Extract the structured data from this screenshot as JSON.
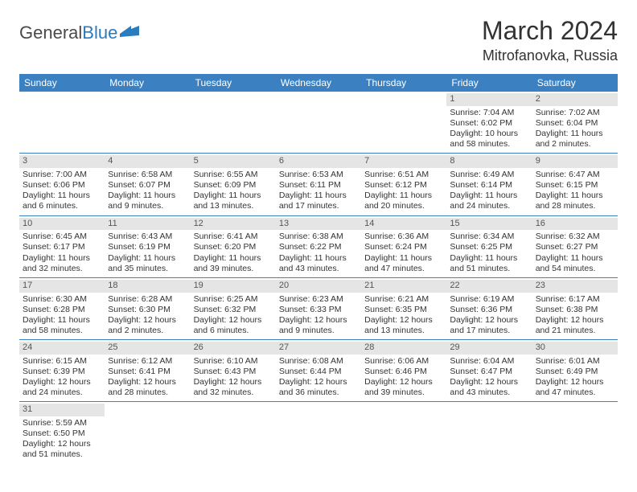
{
  "logo": {
    "text1": "General",
    "text2": "Blue"
  },
  "title": "March 2024",
  "location": "Mitrofanovka, Russia",
  "colors": {
    "header_bg": "#3b81c2",
    "header_text": "#ffffff",
    "date_bg": "#e5e5e5",
    "row_border": "#3b81c2",
    "text": "#333333"
  },
  "day_headers": [
    "Sunday",
    "Monday",
    "Tuesday",
    "Wednesday",
    "Thursday",
    "Friday",
    "Saturday"
  ],
  "weeks": [
    [
      null,
      null,
      null,
      null,
      null,
      {
        "d": "1",
        "sr": "Sunrise: 7:04 AM",
        "ss": "Sunset: 6:02 PM",
        "dl1": "Daylight: 10 hours",
        "dl2": "and 58 minutes."
      },
      {
        "d": "2",
        "sr": "Sunrise: 7:02 AM",
        "ss": "Sunset: 6:04 PM",
        "dl1": "Daylight: 11 hours",
        "dl2": "and 2 minutes."
      }
    ],
    [
      {
        "d": "3",
        "sr": "Sunrise: 7:00 AM",
        "ss": "Sunset: 6:06 PM",
        "dl1": "Daylight: 11 hours",
        "dl2": "and 6 minutes."
      },
      {
        "d": "4",
        "sr": "Sunrise: 6:58 AM",
        "ss": "Sunset: 6:07 PM",
        "dl1": "Daylight: 11 hours",
        "dl2": "and 9 minutes."
      },
      {
        "d": "5",
        "sr": "Sunrise: 6:55 AM",
        "ss": "Sunset: 6:09 PM",
        "dl1": "Daylight: 11 hours",
        "dl2": "and 13 minutes."
      },
      {
        "d": "6",
        "sr": "Sunrise: 6:53 AM",
        "ss": "Sunset: 6:11 PM",
        "dl1": "Daylight: 11 hours",
        "dl2": "and 17 minutes."
      },
      {
        "d": "7",
        "sr": "Sunrise: 6:51 AM",
        "ss": "Sunset: 6:12 PM",
        "dl1": "Daylight: 11 hours",
        "dl2": "and 20 minutes."
      },
      {
        "d": "8",
        "sr": "Sunrise: 6:49 AM",
        "ss": "Sunset: 6:14 PM",
        "dl1": "Daylight: 11 hours",
        "dl2": "and 24 minutes."
      },
      {
        "d": "9",
        "sr": "Sunrise: 6:47 AM",
        "ss": "Sunset: 6:15 PM",
        "dl1": "Daylight: 11 hours",
        "dl2": "and 28 minutes."
      }
    ],
    [
      {
        "d": "10",
        "sr": "Sunrise: 6:45 AM",
        "ss": "Sunset: 6:17 PM",
        "dl1": "Daylight: 11 hours",
        "dl2": "and 32 minutes."
      },
      {
        "d": "11",
        "sr": "Sunrise: 6:43 AM",
        "ss": "Sunset: 6:19 PM",
        "dl1": "Daylight: 11 hours",
        "dl2": "and 35 minutes."
      },
      {
        "d": "12",
        "sr": "Sunrise: 6:41 AM",
        "ss": "Sunset: 6:20 PM",
        "dl1": "Daylight: 11 hours",
        "dl2": "and 39 minutes."
      },
      {
        "d": "13",
        "sr": "Sunrise: 6:38 AM",
        "ss": "Sunset: 6:22 PM",
        "dl1": "Daylight: 11 hours",
        "dl2": "and 43 minutes."
      },
      {
        "d": "14",
        "sr": "Sunrise: 6:36 AM",
        "ss": "Sunset: 6:24 PM",
        "dl1": "Daylight: 11 hours",
        "dl2": "and 47 minutes."
      },
      {
        "d": "15",
        "sr": "Sunrise: 6:34 AM",
        "ss": "Sunset: 6:25 PM",
        "dl1": "Daylight: 11 hours",
        "dl2": "and 51 minutes."
      },
      {
        "d": "16",
        "sr": "Sunrise: 6:32 AM",
        "ss": "Sunset: 6:27 PM",
        "dl1": "Daylight: 11 hours",
        "dl2": "and 54 minutes."
      }
    ],
    [
      {
        "d": "17",
        "sr": "Sunrise: 6:30 AM",
        "ss": "Sunset: 6:28 PM",
        "dl1": "Daylight: 11 hours",
        "dl2": "and 58 minutes."
      },
      {
        "d": "18",
        "sr": "Sunrise: 6:28 AM",
        "ss": "Sunset: 6:30 PM",
        "dl1": "Daylight: 12 hours",
        "dl2": "and 2 minutes."
      },
      {
        "d": "19",
        "sr": "Sunrise: 6:25 AM",
        "ss": "Sunset: 6:32 PM",
        "dl1": "Daylight: 12 hours",
        "dl2": "and 6 minutes."
      },
      {
        "d": "20",
        "sr": "Sunrise: 6:23 AM",
        "ss": "Sunset: 6:33 PM",
        "dl1": "Daylight: 12 hours",
        "dl2": "and 9 minutes."
      },
      {
        "d": "21",
        "sr": "Sunrise: 6:21 AM",
        "ss": "Sunset: 6:35 PM",
        "dl1": "Daylight: 12 hours",
        "dl2": "and 13 minutes."
      },
      {
        "d": "22",
        "sr": "Sunrise: 6:19 AM",
        "ss": "Sunset: 6:36 PM",
        "dl1": "Daylight: 12 hours",
        "dl2": "and 17 minutes."
      },
      {
        "d": "23",
        "sr": "Sunrise: 6:17 AM",
        "ss": "Sunset: 6:38 PM",
        "dl1": "Daylight: 12 hours",
        "dl2": "and 21 minutes."
      }
    ],
    [
      {
        "d": "24",
        "sr": "Sunrise: 6:15 AM",
        "ss": "Sunset: 6:39 PM",
        "dl1": "Daylight: 12 hours",
        "dl2": "and 24 minutes."
      },
      {
        "d": "25",
        "sr": "Sunrise: 6:12 AM",
        "ss": "Sunset: 6:41 PM",
        "dl1": "Daylight: 12 hours",
        "dl2": "and 28 minutes."
      },
      {
        "d": "26",
        "sr": "Sunrise: 6:10 AM",
        "ss": "Sunset: 6:43 PM",
        "dl1": "Daylight: 12 hours",
        "dl2": "and 32 minutes."
      },
      {
        "d": "27",
        "sr": "Sunrise: 6:08 AM",
        "ss": "Sunset: 6:44 PM",
        "dl1": "Daylight: 12 hours",
        "dl2": "and 36 minutes."
      },
      {
        "d": "28",
        "sr": "Sunrise: 6:06 AM",
        "ss": "Sunset: 6:46 PM",
        "dl1": "Daylight: 12 hours",
        "dl2": "and 39 minutes."
      },
      {
        "d": "29",
        "sr": "Sunrise: 6:04 AM",
        "ss": "Sunset: 6:47 PM",
        "dl1": "Daylight: 12 hours",
        "dl2": "and 43 minutes."
      },
      {
        "d": "30",
        "sr": "Sunrise: 6:01 AM",
        "ss": "Sunset: 6:49 PM",
        "dl1": "Daylight: 12 hours",
        "dl2": "and 47 minutes."
      }
    ],
    [
      {
        "d": "31",
        "sr": "Sunrise: 5:59 AM",
        "ss": "Sunset: 6:50 PM",
        "dl1": "Daylight: 12 hours",
        "dl2": "and 51 minutes."
      },
      null,
      null,
      null,
      null,
      null,
      null
    ]
  ]
}
